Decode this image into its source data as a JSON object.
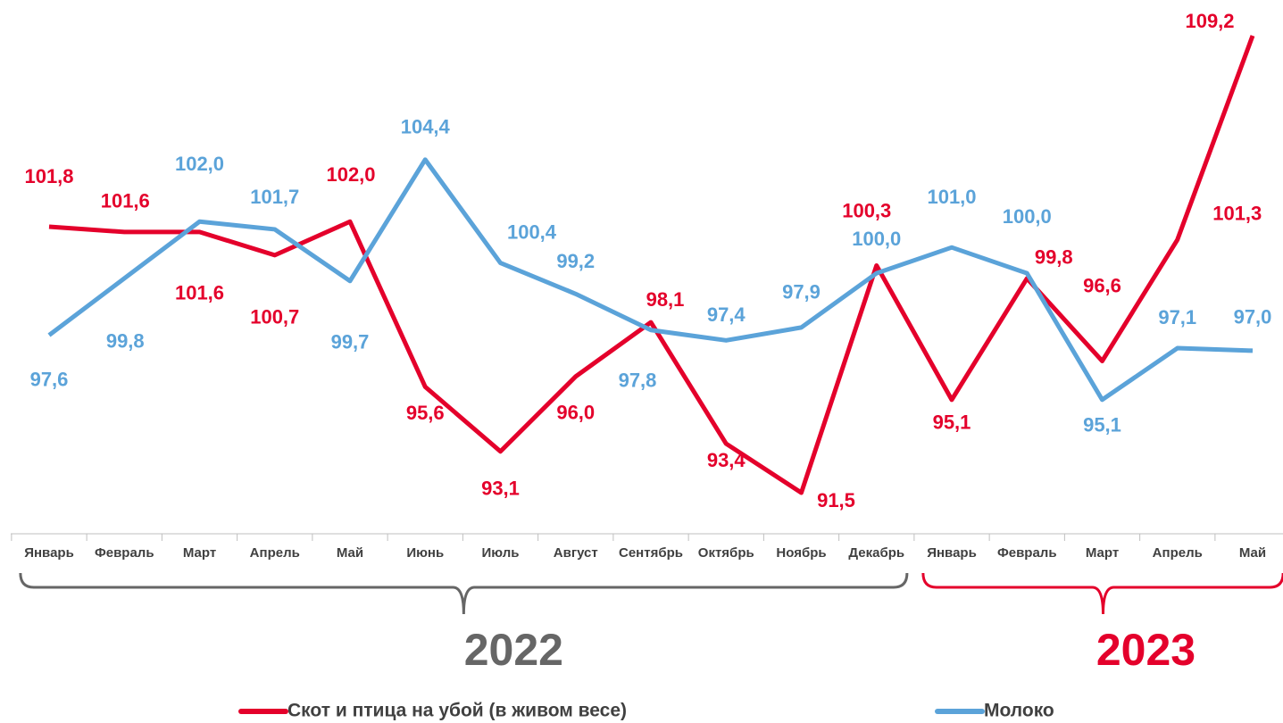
{
  "chart_data": {
    "type": "line",
    "categories": [
      "Январь",
      "Февраль",
      "Март",
      "Апрель",
      "Май",
      "Июнь",
      "Июль",
      "Август",
      "Сентябрь",
      "Октябрь",
      "Ноябрь",
      "Декабрь",
      "Январь",
      "Февраль",
      "Март",
      "Апрель",
      "Май"
    ],
    "groups": [
      {
        "label": "2022",
        "color": "#666666"
      },
      {
        "label": "2023",
        "color": "#e4002b"
      }
    ],
    "series": [
      {
        "name": "Скот и птица на убой (в живом весе)",
        "color": "#e4002b",
        "values": [
          101.8,
          101.6,
          101.6,
          100.7,
          102.0,
          95.6,
          93.1,
          96.0,
          98.1,
          93.4,
          91.5,
          100.3,
          95.1,
          99.8,
          96.6,
          101.3,
          109.2
        ],
        "value_labels": [
          "101,8",
          "101,6",
          "101,6",
          "100,7",
          "102,0",
          "95,6",
          "93,1",
          "96,0",
          "98,1",
          "93,4",
          "91,5",
          "100,3",
          "95,1",
          "99,8",
          "96,6",
          "101,3",
          "109,2"
        ]
      },
      {
        "name": "Молоко",
        "color": "#5ba3d9",
        "values": [
          97.6,
          99.8,
          102.0,
          101.7,
          99.7,
          104.4,
          100.4,
          99.2,
          97.8,
          97.4,
          97.9,
          100.0,
          101.0,
          100.0,
          95.1,
          97.1,
          97.0
        ],
        "value_labels": [
          "97,6",
          "99,8",
          "102,0",
          "101,7",
          "99,7",
          "104,4",
          "100,4",
          "99,2",
          "97,8",
          "97,4",
          "97,9",
          "100,0",
          "101,0",
          "100,0",
          "95,1",
          "97,1",
          "97,0"
        ]
      }
    ],
    "legend": "bottom"
  }
}
